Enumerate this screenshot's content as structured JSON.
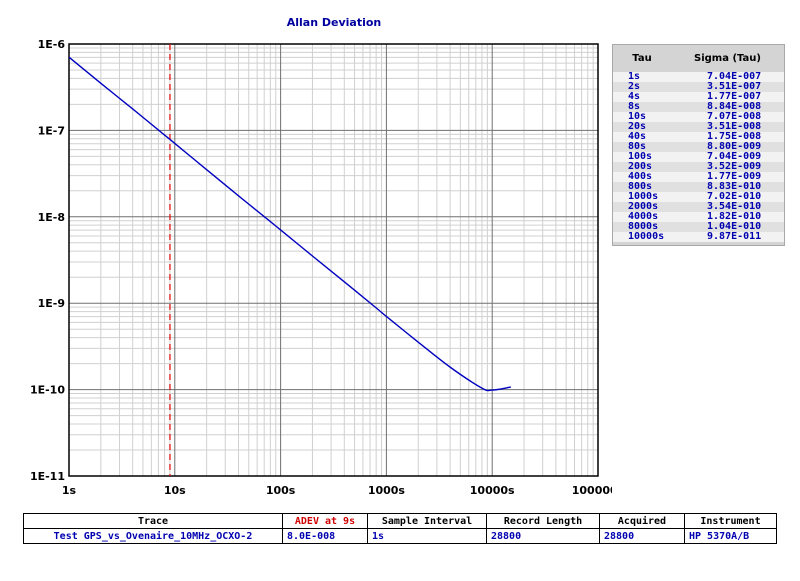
{
  "chart_data": {
    "type": "line",
    "title": "Allan Deviation",
    "xscale": "log",
    "yscale": "log",
    "xlim": [
      1,
      100000
    ],
    "ylim": [
      1e-11,
      1e-06
    ],
    "x_tick_labels": [
      "1s",
      "10s",
      "100s",
      "1000s",
      "10000s",
      "100000s"
    ],
    "y_tick_labels": [
      "1E-6",
      "1E-7",
      "1E-8",
      "1E-9",
      "1E-10",
      "1E-11"
    ],
    "grid": true,
    "marker_line": {
      "x": 9,
      "style": "dashed",
      "color": "#e00000"
    },
    "series": [
      {
        "color": "#0000c0",
        "x": [
          1,
          2,
          4,
          8,
          10,
          20,
          40,
          80,
          100,
          200,
          400,
          800,
          1000,
          2000,
          4000,
          8000,
          10000,
          15000
        ],
        "y": [
          7.04e-07,
          3.51e-07,
          1.77e-07,
          8.84e-08,
          7.07e-08,
          3.51e-08,
          1.75e-08,
          8.8e-09,
          7.04e-09,
          3.52e-09,
          1.77e-09,
          8.83e-10,
          7.02e-10,
          3.54e-10,
          1.82e-10,
          1.04e-10,
          9.87e-11,
          1.07e-10
        ]
      }
    ]
  },
  "sigma_table": {
    "col_tau": "Tau",
    "col_sigma": "Sigma (Tau)",
    "rows": [
      {
        "tau": "1s",
        "sigma": "7.04E-007"
      },
      {
        "tau": "2s",
        "sigma": "3.51E-007"
      },
      {
        "tau": "4s",
        "sigma": "1.77E-007"
      },
      {
        "tau": "8s",
        "sigma": "8.84E-008"
      },
      {
        "tau": "10s",
        "sigma": "7.07E-008"
      },
      {
        "tau": "20s",
        "sigma": "3.51E-008"
      },
      {
        "tau": "40s",
        "sigma": "1.75E-008"
      },
      {
        "tau": "80s",
        "sigma": "8.80E-009"
      },
      {
        "tau": "100s",
        "sigma": "7.04E-009"
      },
      {
        "tau": "200s",
        "sigma": "3.52E-009"
      },
      {
        "tau": "400s",
        "sigma": "1.77E-009"
      },
      {
        "tau": "800s",
        "sigma": "8.83E-010"
      },
      {
        "tau": "1000s",
        "sigma": "7.02E-010"
      },
      {
        "tau": "2000s",
        "sigma": "3.54E-010"
      },
      {
        "tau": "4000s",
        "sigma": "1.82E-010"
      },
      {
        "tau": "8000s",
        "sigma": "1.04E-010"
      },
      {
        "tau": "10000s",
        "sigma": "9.87E-011"
      }
    ]
  },
  "info": {
    "headers": {
      "trace": "Trace",
      "adev": "ADEV at 9s",
      "sample_interval": "Sample Interval",
      "record_length": "Record Length",
      "acquired": "Acquired",
      "instrument": "Instrument"
    },
    "values": {
      "trace": "Test GPS_vs_Ovenaire_10MHz_OCXO-2",
      "adev": "8.0E-008",
      "sample_interval": "1s",
      "record_length": "28800",
      "acquired": "28800",
      "instrument": "HP 5370A/B"
    }
  }
}
